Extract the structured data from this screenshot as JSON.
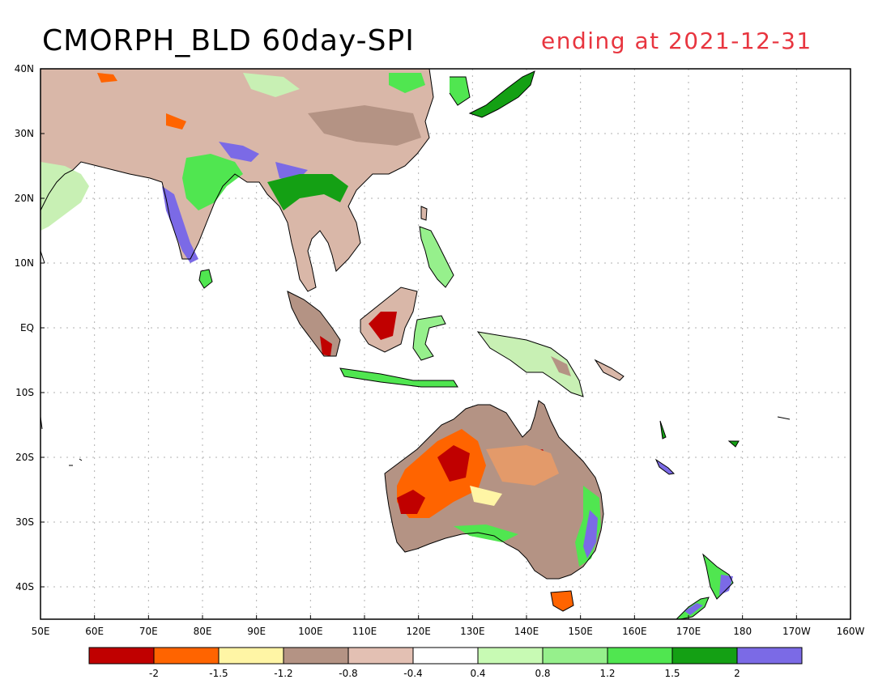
{
  "title": {
    "left": "CMORPH_BLD 60day-SPI",
    "right": "ending at 2021-12-31",
    "right_color": "#e8353f"
  },
  "map": {
    "projection": "lat-lon",
    "lon_range": [
      "50E",
      "160W"
    ],
    "lat_range": [
      "45S",
      "40N"
    ],
    "lat_labels": [
      "40N",
      "30N",
      "20N",
      "10N",
      "EQ",
      "10S",
      "20S",
      "30S",
      "40S"
    ],
    "lon_labels": [
      "50E",
      "60E",
      "70E",
      "80E",
      "90E",
      "100E",
      "110E",
      "120E",
      "130E",
      "140E",
      "150E",
      "160E",
      "170E",
      "180",
      "170W",
      "160W"
    ],
    "grid": "dotted"
  },
  "colorbar": {
    "colors": [
      "#c00000",
      "#ff6400",
      "#fff5a5",
      "#b49384",
      "#e3c0b3",
      "#ffffff",
      "#c8fab4",
      "#96f08c",
      "#50e650",
      "#14a014",
      "#7b6ae6"
    ],
    "labels": [
      "-2",
      "-1.5",
      "-1.2",
      "-0.8",
      "-0.4",
      "0.4",
      "0.8",
      "1.2",
      "1.5",
      "2"
    ]
  }
}
